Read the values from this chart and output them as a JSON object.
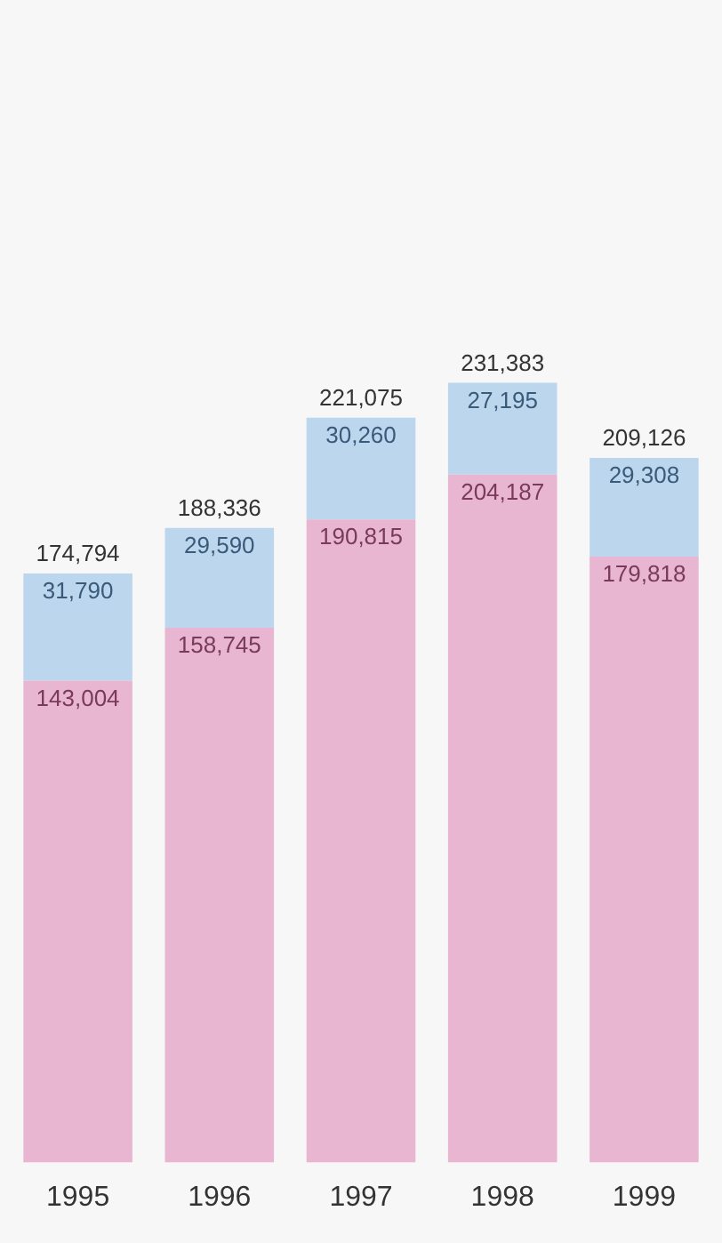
{
  "chart_data": {
    "type": "bar",
    "stacked": true,
    "categories": [
      "1995",
      "1996",
      "1997",
      "1998",
      "1999"
    ],
    "series": [
      {
        "color": "#e8b6d0",
        "values": [
          143004,
          158745,
          190815,
          204187,
          179818
        ],
        "value_labels": [
          "143,004",
          "158,745",
          "190,815",
          "204,187",
          "179,818"
        ]
      },
      {
        "color": "#bcd6ee",
        "values": [
          31790,
          29590,
          30260,
          27195,
          29308
        ],
        "value_labels": [
          "31,790",
          "29,590",
          "30,260",
          "27,195",
          "29,308"
        ]
      }
    ],
    "totals": [
      "174,794",
      "188,336",
      "221,075",
      "231,383",
      "209,126"
    ],
    "tick_labels": "x",
    "legend": false
  }
}
